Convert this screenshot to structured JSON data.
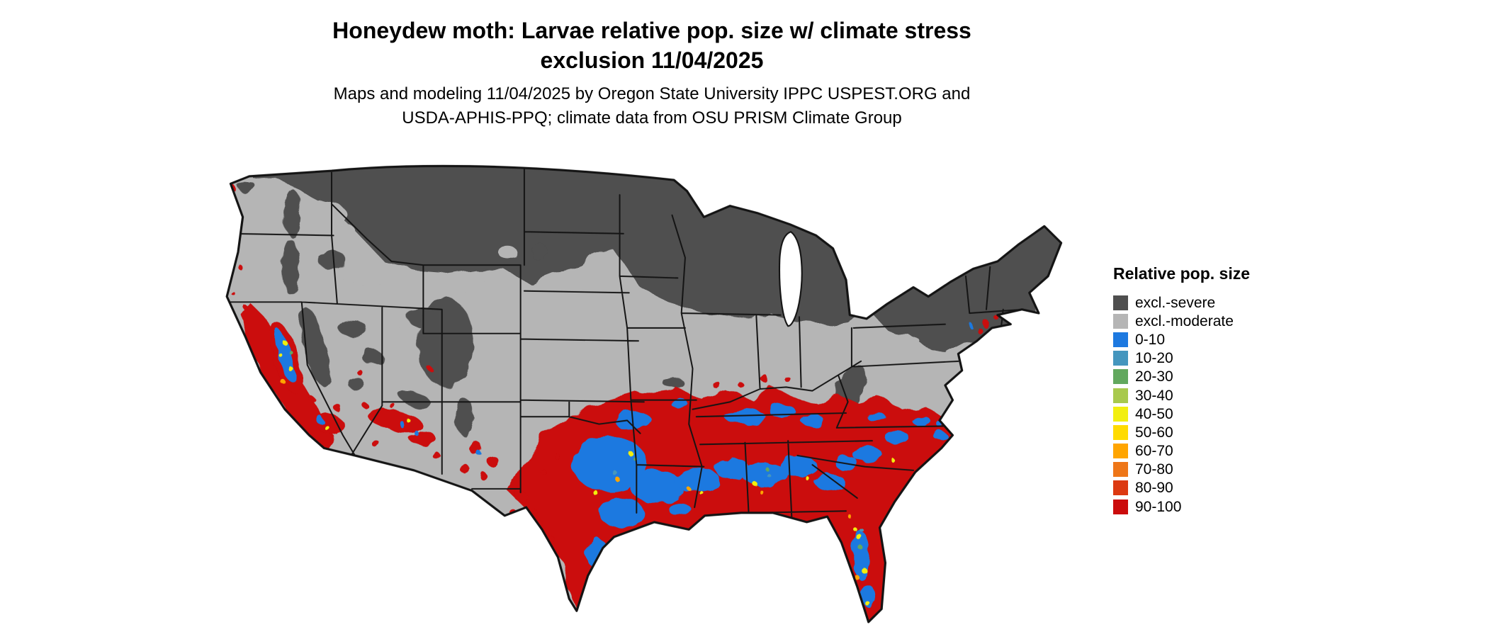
{
  "page": {
    "background": "#ffffff"
  },
  "header": {
    "title_line1": "Honeydew moth: Larvae relative pop. size w/ climate stress",
    "title_line2": "exclusion 11/04/2025",
    "subtitle_line1": "Maps and modeling 11/04/2025 by Oregon State University IPPC USPEST.ORG and",
    "subtitle_line2": "USDA-APHIS-PPQ; climate data from OSU PRISM Climate Group"
  },
  "map": {
    "region": "continental United States",
    "border_color": "#141414",
    "water_color": "#ffffff"
  },
  "legend": {
    "title": "Relative pop. size",
    "items": [
      {
        "label": "excl.-severe",
        "color": "#4f4f4f"
      },
      {
        "label": "excl.-moderate",
        "color": "#b5b5b5"
      },
      {
        "label": "0-10",
        "color": "#1d79e0"
      },
      {
        "label": "10-20",
        "color": "#4596be"
      },
      {
        "label": "20-30",
        "color": "#62a85e"
      },
      {
        "label": "30-40",
        "color": "#a8c94d"
      },
      {
        "label": "40-50",
        "color": "#f2ef10"
      },
      {
        "label": "50-60",
        "color": "#ffdb00"
      },
      {
        "label": "60-70",
        "color": "#ffa500"
      },
      {
        "label": "70-80",
        "color": "#ee7618"
      },
      {
        "label": "80-90",
        "color": "#dc3911"
      },
      {
        "label": "90-100",
        "color": "#cb0c0c"
      }
    ]
  }
}
